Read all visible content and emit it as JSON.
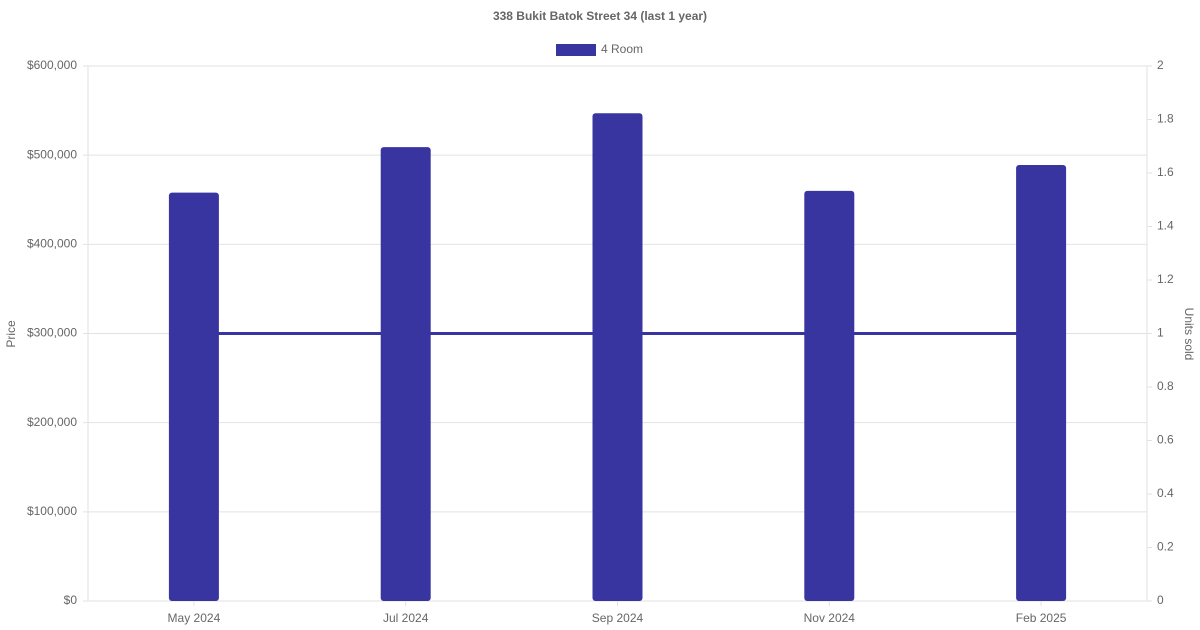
{
  "chart_data": {
    "type": "bar",
    "title": "338 Bukit Batok Street 34 (last 1 year)",
    "y_label": "Price",
    "y2_label": "Units sold",
    "categories": [
      "May 2024",
      "Jul 2024",
      "Sep 2024",
      "Nov 2024",
      "Feb 2025"
    ],
    "series": [
      {
        "name": "4 Room",
        "type": "bar",
        "color": "#3834a0",
        "values": [
          458000,
          509000,
          547000,
          460000,
          489000
        ]
      },
      {
        "type": "line",
        "axis": "y2",
        "color": "#3834a0",
        "values": [
          1,
          1,
          1,
          1,
          1
        ]
      }
    ],
    "ylim": [
      0,
      600000
    ],
    "yticks": [
      {
        "value": 0,
        "label": "$0"
      },
      {
        "value": 100000,
        "label": "$100,000"
      },
      {
        "value": 200000,
        "label": "$200,000"
      },
      {
        "value": 300000,
        "label": "$300,000"
      },
      {
        "value": 400000,
        "label": "$400,000"
      },
      {
        "value": 500000,
        "label": "$500,000"
      },
      {
        "value": 600000,
        "label": "$600,000"
      }
    ],
    "y2lim": [
      0,
      2
    ],
    "y2ticks": [
      0,
      0.2,
      0.4,
      0.6,
      0.8,
      1,
      1.2,
      1.4,
      1.6,
      1.8,
      2
    ],
    "grid": true,
    "legend": "top"
  }
}
